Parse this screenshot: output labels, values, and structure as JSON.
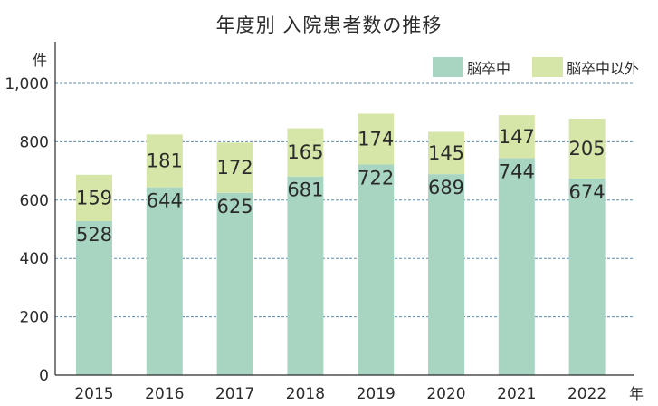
{
  "chart_data": {
    "type": "bar",
    "stacked": true,
    "title": "年度別 入院患者数の推移",
    "y_unit": "件",
    "x_unit": "年",
    "categories": [
      "2015",
      "2016",
      "2017",
      "2018",
      "2019",
      "2020",
      "2021",
      "2022"
    ],
    "series": [
      {
        "name": "脳卒中",
        "values": [
          528,
          644,
          625,
          681,
          722,
          689,
          744,
          674
        ],
        "color": "#a8d5c2"
      },
      {
        "name": "脳卒中以外",
        "values": [
          159,
          181,
          172,
          165,
          174,
          145,
          147,
          205
        ],
        "color": "#d6e6a8"
      }
    ],
    "ylim": [
      0,
      1000
    ],
    "yticks": [
      0,
      200,
      400,
      600,
      800,
      1000
    ],
    "ytick_labels": [
      "0",
      "200",
      "400",
      "600",
      "800",
      "1,000"
    ],
    "grid": true,
    "legend_position": "top-right"
  }
}
